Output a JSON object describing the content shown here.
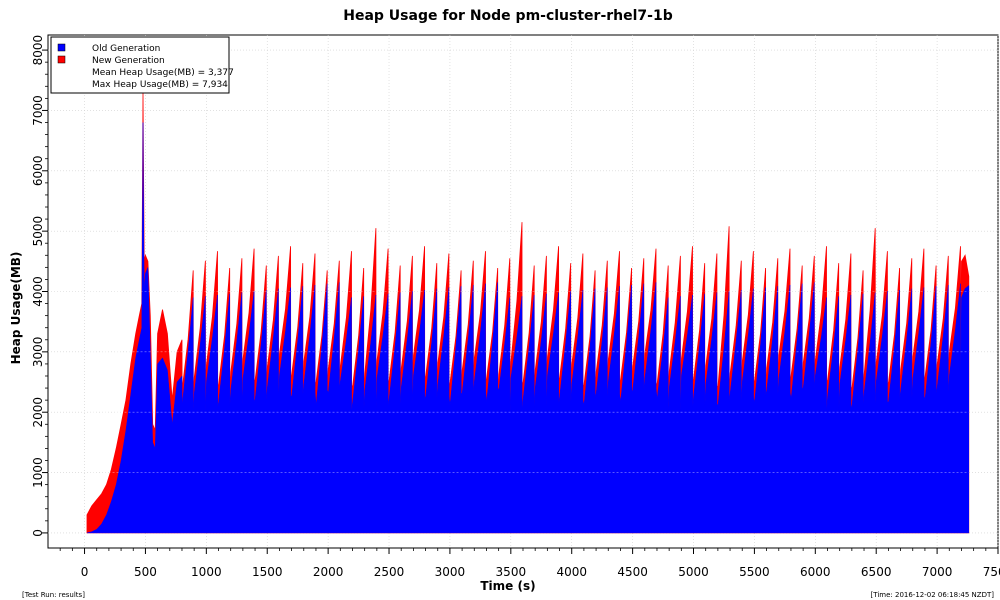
{
  "chart_data": {
    "type": "area",
    "title": "Heap Usage for Node pm-cluster-rhel7-1b",
    "xlabel": "Time (s)",
    "ylabel": "Heap Usage(MB)",
    "xlim": [
      -300,
      7500
    ],
    "ylim": [
      -250,
      8250
    ],
    "xticks": [
      0,
      500,
      1000,
      1500,
      2000,
      2500,
      3000,
      3500,
      4000,
      4500,
      5000,
      5500,
      6000,
      6500,
      7000,
      7500
    ],
    "yticks": [
      0,
      1000,
      2000,
      3000,
      4000,
      5000,
      6000,
      7000,
      8000
    ],
    "grid": true,
    "legend_position": "top-left",
    "series": [
      {
        "name": "Old Generation",
        "color": "#0000ff"
      },
      {
        "name": "New Generation",
        "color": "#ff0000"
      }
    ],
    "startup": {
      "x": [
        20,
        60,
        100,
        140,
        180,
        220,
        260,
        300,
        340,
        380,
        420,
        450,
        470,
        480,
        490,
        500,
        520,
        540,
        560,
        580,
        600,
        640,
        680,
        720,
        760,
        800
      ],
      "old": [
        0,
        20,
        60,
        150,
        300,
        520,
        800,
        1200,
        1700,
        2300,
        2900,
        3200,
        3400,
        6800,
        4000,
        4300,
        4400,
        3000,
        1500,
        1400,
        2800,
        2900,
        2700,
        1800,
        2500,
        2600
      ],
      "new": [
        300,
        450,
        550,
        650,
        800,
        1050,
        1400,
        1800,
        2200,
        2800,
        3300,
        3600,
        3800,
        7300,
        4500,
        4600,
        4500,
        3600,
        1800,
        1700,
        3300,
        3700,
        3300,
        2200,
        3000,
        3200
      ]
    },
    "gc_cycles": {
      "start": 800,
      "end": 7260,
      "period": 100,
      "old_min": 2000,
      "old_max": 4150,
      "new_min": 2300,
      "new_max": 4700,
      "peak_spikes": [
        {
          "x": 2350,
          "value": 5050
        },
        {
          "x": 3550,
          "value": 5150
        },
        {
          "x": 5250,
          "value": 5080
        },
        {
          "x": 6450,
          "value": 5050
        }
      ],
      "tail": {
        "x": [
          7200,
          7230,
          7260
        ],
        "old": [
          3900,
          4050,
          4100
        ],
        "new": [
          4500,
          4600,
          4250
        ]
      }
    },
    "legend": {
      "items": [
        "Old Generation",
        "New Generation"
      ],
      "mean_label": "Mean Heap Usage(MB) = 3,377",
      "max_label": "Max Heap Usage(MB) = 7,934"
    }
  },
  "footer": {
    "left": "[Test Run: results]",
    "right": "[Time: 2016-12-02 06:18:45 NZDT]"
  }
}
